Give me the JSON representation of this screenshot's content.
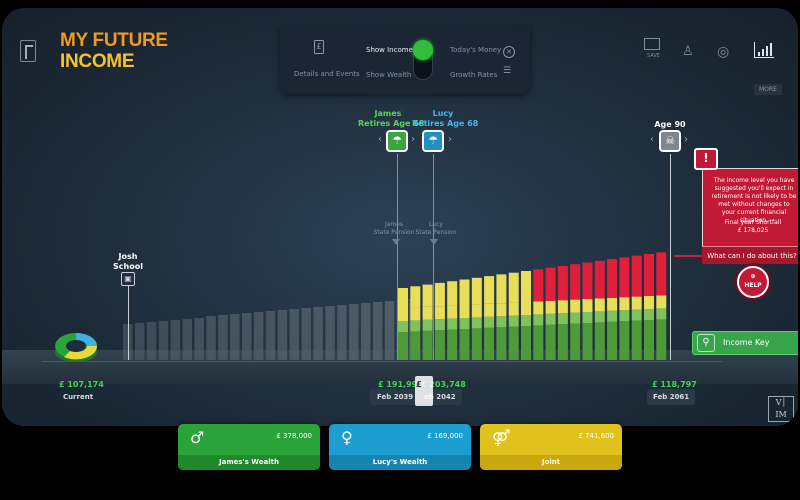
{
  "app": {
    "title_line1": "MY FUTURE",
    "title_line2": "INCOME"
  },
  "panel": {
    "details_label": "Details and Events",
    "show_income_label": "Show Income",
    "show_wealth_label": "Show Wealth",
    "todays_money_label": "Today's Money",
    "growth_rates_label": "Growth Rates",
    "more_label": "MORE",
    "save_label": "SAVE",
    "active_toggle": "Show Income"
  },
  "events": {
    "josh_school_label": "Josh\nSchool",
    "james_retires": "James\nRetires Age 68",
    "lucy_retires": "Lucy\nRetires Age 68",
    "age_90": "Age 90",
    "james_state_pension": "James\nState Pension",
    "lucy_state_pension": "Lucy\nState Pension"
  },
  "warning": {
    "message": "The income level you have suggested you'll expect in retirement is not likely to be met without changes to your current financial situation.",
    "shortfall_label": "Final year Shortfall",
    "shortfall_value": "£ 178,025",
    "action": "What can I do about this?",
    "help_label": "HELP"
  },
  "income_key_label": "Income Key",
  "timeline": {
    "current_amount": "£ 107,174",
    "current_label": "Current",
    "m1_amount": "£ 191,997",
    "m1_date": "Feb 2039",
    "m2_amount": "£ 203,748",
    "m2_date": "eb 2042",
    "end_amount": "£ 118,797",
    "end_date": "Feb 2061"
  },
  "wealth": {
    "james_label": "James's Wealth",
    "james_value": "£ 378,000",
    "lucy_label": "Lucy's Wealth",
    "lucy_value": "£ 169,000",
    "joint_label": "Joint",
    "joint_value": "£ 741,600"
  },
  "colors": {
    "green": "#4e9a3a",
    "light_green": "#7fc15a",
    "yellow": "#e8de5a",
    "red": "#e0203a",
    "grey_bar": "#58646e"
  },
  "chart_data": {
    "type": "bar",
    "series": [
      {
        "values": [
          28,
          30,
          31,
          32,
          33,
          34,
          35,
          36,
          37,
          38,
          39,
          40,
          41,
          42,
          43,
          44,
          45,
          46,
          47,
          48,
          49,
          50
        ]
      },
      {
        "values": [
          11,
          11,
          11,
          11,
          11,
          11,
          11,
          11,
          11,
          11,
          11,
          11,
          11,
          11,
          11,
          11,
          11,
          11,
          11,
          11,
          11,
          11
        ]
      },
      {
        "values": [
          13,
          13,
          13,
          13,
          13,
          13,
          13,
          13,
          13,
          13,
          13,
          13,
          13,
          13,
          13,
          13,
          13,
          13,
          13,
          13,
          13,
          13
        ]
      },
      {
        "values": [
          39,
          39,
          39,
          39,
          39,
          39,
          39,
          39,
          39,
          39,
          39,
          39,
          39,
          39,
          39,
          39,
          39,
          39,
          39,
          39,
          39,
          39
        ]
      },
      {
        "values": [
          0,
          0,
          0,
          0,
          0,
          0,
          0,
          0,
          0,
          0,
          0,
          0,
          0,
          0,
          0,
          0,
          0,
          0,
          0,
          0,
          0,
          0
        ]
      }
    ]
  }
}
